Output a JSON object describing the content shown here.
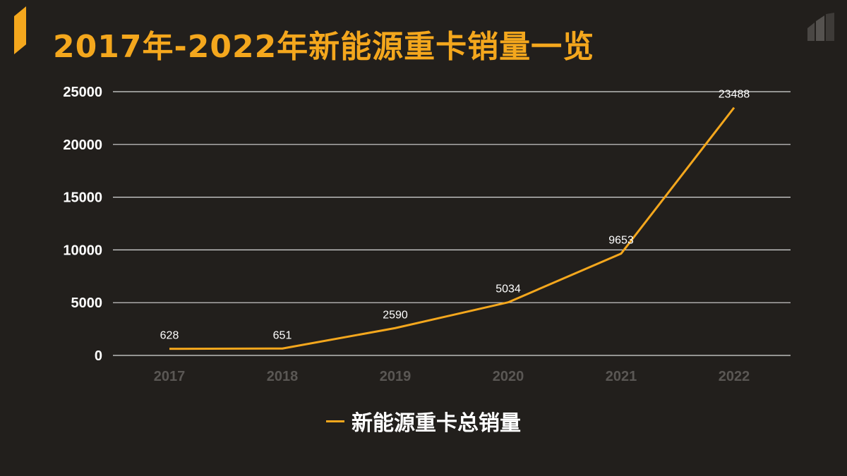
{
  "title": "2017年-2022年新能源重卡销量一览",
  "colors": {
    "background": "#221f1c",
    "accent": "#f4a71d",
    "gridline": "#d9d9d9",
    "x_tick": "#5a5754",
    "y_tick": "#ffffff",
    "data_label": "#ffffff"
  },
  "icons": [
    "accent-bar-icon",
    "stacked-bars-logo-icon"
  ],
  "chart_data": {
    "type": "line",
    "categories": [
      "2017",
      "2018",
      "2019",
      "2020",
      "2021",
      "2022"
    ],
    "series": [
      {
        "name": "新能源重卡总销量",
        "values": [
          628,
          651,
          2590,
          5034,
          9653,
          23488
        ]
      }
    ],
    "data_labels": [
      "628",
      "651",
      "2590",
      "5034",
      "9653",
      "23488"
    ],
    "y_ticks": [
      "0",
      "5000",
      "10000",
      "15000",
      "20000",
      "25000"
    ],
    "ylim": [
      0,
      25000
    ],
    "grid": true,
    "legend_position": "bottom",
    "xlabel": "",
    "ylabel": ""
  }
}
